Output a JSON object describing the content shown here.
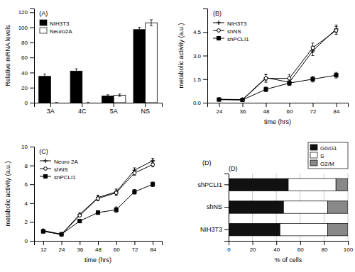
{
  "chart_data": [
    {
      "type": "bar",
      "annotations": [
        "(A)"
      ],
      "categories": [
        "3A",
        "4C",
        "5A",
        "NS"
      ],
      "series": [
        {
          "name": "NIH3T3",
          "color": "black",
          "values": [
            35,
            42,
            9,
            97
          ],
          "errors": [
            3,
            3,
            1.5,
            3
          ]
        },
        {
          "name": "Neuro2A",
          "color": "white",
          "values": [
            0,
            0,
            10,
            106
          ],
          "errors": [
            0,
            0,
            1.5,
            4
          ]
        }
      ],
      "ylabel": "Relative mRNA levels",
      "ylim": [
        0,
        125
      ],
      "yticks": [
        0,
        20,
        40,
        60,
        80,
        100,
        120
      ],
      "grid": false,
      "legend": "upper left"
    },
    {
      "type": "line",
      "annotations": [
        "(B)"
      ],
      "x": [
        24,
        36,
        48,
        60,
        72,
        84
      ],
      "series": [
        {
          "name": "NIH3T3",
          "color": "black",
          "marker": "plus",
          "values": [
            0.22,
            0.2,
            1.6,
            1.3,
            3.3,
            4.7
          ],
          "errors": [
            0.04,
            0.04,
            0.2,
            0.2,
            0.3,
            0.25
          ]
        },
        {
          "name": "shNS",
          "color": "black",
          "marker": "circle-open",
          "values": [
            0.2,
            0.18,
            1.55,
            1.55,
            3.5,
            4.6
          ],
          "errors": [
            0.04,
            0.04,
            0.25,
            0.25,
            0.3,
            0.25
          ]
        },
        {
          "name": "shPCLI1",
          "color": "black",
          "marker": "square",
          "values": [
            0.2,
            0.18,
            0.85,
            1.25,
            1.5,
            1.75
          ],
          "errors": [
            0.04,
            0.04,
            0.15,
            0.15,
            0.18,
            0.18
          ]
        }
      ],
      "xlabel": "time (hrs)",
      "ylabel": "metabolic activity (a.u.)",
      "xlim": [
        18,
        90
      ],
      "xticks": [
        24,
        36,
        48,
        60,
        72,
        84
      ],
      "ylim": [
        0,
        6
      ],
      "yticks": [
        {
          "value": 0,
          "label": "0.0"
        },
        1.5,
        {
          "value": 3,
          "label": "3.0"
        },
        4.5
      ],
      "grid": false,
      "legend": "upper left"
    },
    {
      "type": "line",
      "annotations": [
        "(C)"
      ],
      "x": [
        12,
        24,
        36,
        48,
        60,
        72,
        84
      ],
      "series": [
        {
          "name": "Neuro 2A",
          "color": "black",
          "marker": "plus",
          "values": [
            1.1,
            0.7,
            2.8,
            4.6,
            5.2,
            7.5,
            8.5
          ],
          "errors": [
            0.1,
            0.08,
            0.15,
            0.25,
            0.3,
            0.25,
            0.25
          ]
        },
        {
          "name": "shNS",
          "color": "black",
          "marker": "circle-open",
          "values": [
            1.05,
            0.65,
            2.7,
            4.5,
            5.1,
            7.2,
            8.1
          ],
          "errors": [
            0.1,
            0.08,
            0.15,
            0.25,
            0.3,
            0.25,
            0.25
          ]
        },
        {
          "name": "shPCLI1",
          "color": "black",
          "marker": "square",
          "values": [
            1.0,
            0.7,
            2.1,
            3.0,
            3.3,
            5.2,
            6.0
          ],
          "errors": [
            0.1,
            0.08,
            0.15,
            0.2,
            0.3,
            0.25,
            0.25
          ]
        }
      ],
      "xlabel": "time (hrs)",
      "ylabel": "metabolic activity (a.u.)",
      "xlim": [
        6,
        90
      ],
      "xticks": [
        12,
        24,
        36,
        48,
        60,
        72,
        84
      ],
      "ylim": [
        0,
        10
      ],
      "yticks": [
        0,
        2,
        4,
        6,
        8,
        10
      ],
      "grid": false,
      "legend": "upper left"
    },
    {
      "type": "bar",
      "orientation": "horizontal",
      "stacked": true,
      "annotations": [
        "(D)",
        "(D)"
      ],
      "categories": [
        "NIH3T3",
        "shNS",
        "shPCLI1"
      ],
      "series": [
        {
          "name": "G0/G1",
          "color": "#111111",
          "values": [
            43,
            46,
            50
          ]
        },
        {
          "name": "S",
          "color": "#ffffff",
          "values": [
            40,
            37,
            40
          ]
        },
        {
          "name": "G2/M",
          "color": "#888888",
          "values": [
            17,
            17,
            10
          ]
        }
      ],
      "xlabel": "% of cells",
      "xlim": [
        0,
        100
      ],
      "xticks": [
        0,
        20,
        40,
        60,
        80,
        100
      ],
      "grid": true,
      "legend": "upper right"
    }
  ]
}
